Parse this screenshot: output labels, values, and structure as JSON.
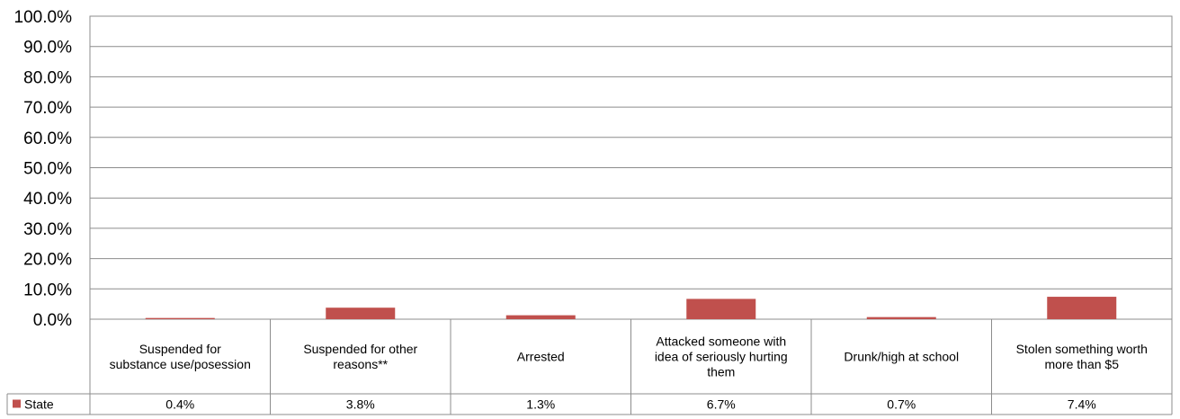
{
  "chart_data": {
    "type": "bar",
    "categories": [
      [
        "Suspended for",
        "substance use/posession"
      ],
      [
        "Suspended for other",
        "reasons**"
      ],
      [
        "Arrested"
      ],
      [
        "Attacked someone with",
        "idea of seriously hurting",
        "them"
      ],
      [
        "Drunk/high at school"
      ],
      [
        "Stolen something worth",
        "more than $5"
      ]
    ],
    "series": [
      {
        "name": "State",
        "color": "#C0504D",
        "values": [
          0.4,
          3.8,
          1.3,
          6.7,
          0.7,
          7.4
        ],
        "labels": [
          "0.4%",
          "3.8%",
          "1.3%",
          "6.7%",
          "0.7%",
          "7.4%"
        ]
      }
    ],
    "ylim": [
      0,
      100
    ],
    "yticks": [
      0,
      10,
      20,
      30,
      40,
      50,
      60,
      70,
      80,
      90,
      100
    ],
    "ytick_labels": [
      "0.0%",
      "10.0%",
      "20.0%",
      "30.0%",
      "40.0%",
      "50.0%",
      "60.0%",
      "70.0%",
      "80.0%",
      "90.0%",
      "100.0%"
    ],
    "grid": true,
    "legend": "data-table-left",
    "title": "",
    "xlabel": "",
    "ylabel": ""
  }
}
